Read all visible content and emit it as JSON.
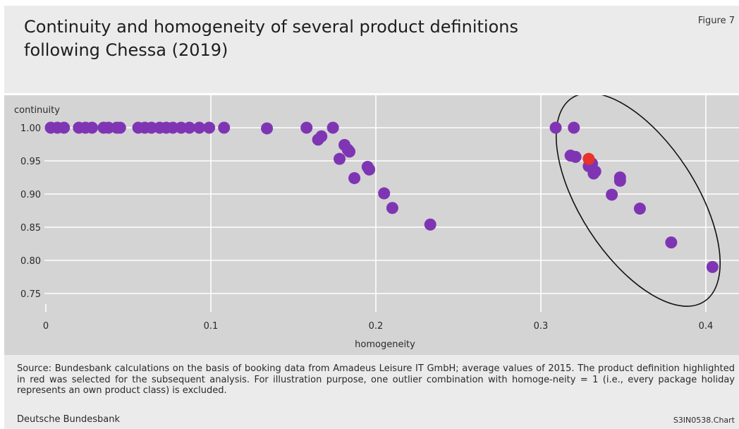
{
  "header": {
    "title_lines": [
      "Continuity and homogeneity of several product definitions",
      "following Chessa (2019)"
    ],
    "figure_label": "Figure 7"
  },
  "chart_data": {
    "type": "scatter",
    "title": "Continuity and homogeneity of several product definitions following Chessa (2019)",
    "xlabel": "homogeneity",
    "ylabel": "continuity",
    "xlim": [
      0,
      0.41
    ],
    "ylim": [
      0.745,
      1.03
    ],
    "x_ticks": [
      0,
      0.1,
      0.2,
      0.3,
      0.4
    ],
    "x_tick_labels": [
      "0",
      "0.1",
      "0.2",
      "0.3",
      "0.4"
    ],
    "y_ticks": [
      0.75,
      0.8,
      0.85,
      0.9,
      0.95,
      1.0
    ],
    "y_tick_labels": [
      "0.75",
      "0.80",
      "0.85",
      "0.90",
      "0.95",
      "1.00"
    ],
    "grid": true,
    "background": "#d4d4d4",
    "gridline_color": "#ffffff",
    "point_color": "#7f35b3",
    "highlight_color": "#e8332a",
    "points": [
      {
        "x": 0.003,
        "y": 1.0
      },
      {
        "x": 0.007,
        "y": 1.0
      },
      {
        "x": 0.011,
        "y": 1.0
      },
      {
        "x": 0.02,
        "y": 1.0
      },
      {
        "x": 0.024,
        "y": 1.0
      },
      {
        "x": 0.028,
        "y": 1.0
      },
      {
        "x": 0.035,
        "y": 1.0
      },
      {
        "x": 0.038,
        "y": 1.0
      },
      {
        "x": 0.043,
        "y": 1.0
      },
      {
        "x": 0.045,
        "y": 1.0
      },
      {
        "x": 0.056,
        "y": 1.0
      },
      {
        "x": 0.06,
        "y": 1.0
      },
      {
        "x": 0.064,
        "y": 1.0
      },
      {
        "x": 0.069,
        "y": 1.0
      },
      {
        "x": 0.073,
        "y": 1.0
      },
      {
        "x": 0.077,
        "y": 1.0
      },
      {
        "x": 0.082,
        "y": 1.0
      },
      {
        "x": 0.087,
        "y": 1.0
      },
      {
        "x": 0.093,
        "y": 1.0
      },
      {
        "x": 0.099,
        "y": 1.0
      },
      {
        "x": 0.108,
        "y": 1.0
      },
      {
        "x": 0.134,
        "y": 0.999
      },
      {
        "x": 0.158,
        "y": 1.0
      },
      {
        "x": 0.174,
        "y": 1.0
      },
      {
        "x": 0.167,
        "y": 0.987
      },
      {
        "x": 0.165,
        "y": 0.982
      },
      {
        "x": 0.181,
        "y": 0.974
      },
      {
        "x": 0.183,
        "y": 0.967
      },
      {
        "x": 0.184,
        "y": 0.964
      },
      {
        "x": 0.178,
        "y": 0.953
      },
      {
        "x": 0.195,
        "y": 0.941
      },
      {
        "x": 0.196,
        "y": 0.937
      },
      {
        "x": 0.187,
        "y": 0.924
      },
      {
        "x": 0.205,
        "y": 0.901
      },
      {
        "x": 0.21,
        "y": 0.879
      },
      {
        "x": 0.233,
        "y": 0.854
      },
      {
        "x": 0.309,
        "y": 1.0
      },
      {
        "x": 0.32,
        "y": 1.0
      },
      {
        "x": 0.318,
        "y": 0.958
      },
      {
        "x": 0.321,
        "y": 0.956
      },
      {
        "x": 0.331,
        "y": 0.946
      },
      {
        "x": 0.329,
        "y": 0.942
      },
      {
        "x": 0.333,
        "y": 0.934
      },
      {
        "x": 0.332,
        "y": 0.931
      },
      {
        "x": 0.348,
        "y": 0.925
      },
      {
        "x": 0.348,
        "y": 0.92
      },
      {
        "x": 0.343,
        "y": 0.899
      },
      {
        "x": 0.36,
        "y": 0.878
      },
      {
        "x": 0.379,
        "y": 0.827
      },
      {
        "x": 0.404,
        "y": 0.79
      },
      {
        "x": 0.329,
        "y": 0.953,
        "highlight": true
      }
    ]
  },
  "footer": {
    "source_note": "Source: Bundesbank calculations on the basis of booking data from Amadeus Leisure IT GmbH; average values of 2015. The product definition highlighted in red was selected for the subsequent analysis. For illustration purpose, one outlier combination with homoge-neity = 1 (i.e., every package holiday represents an own product class) is excluded.",
    "publisher": "Deutsche Bundesbank",
    "chart_code": "S3IN0538.Chart"
  }
}
